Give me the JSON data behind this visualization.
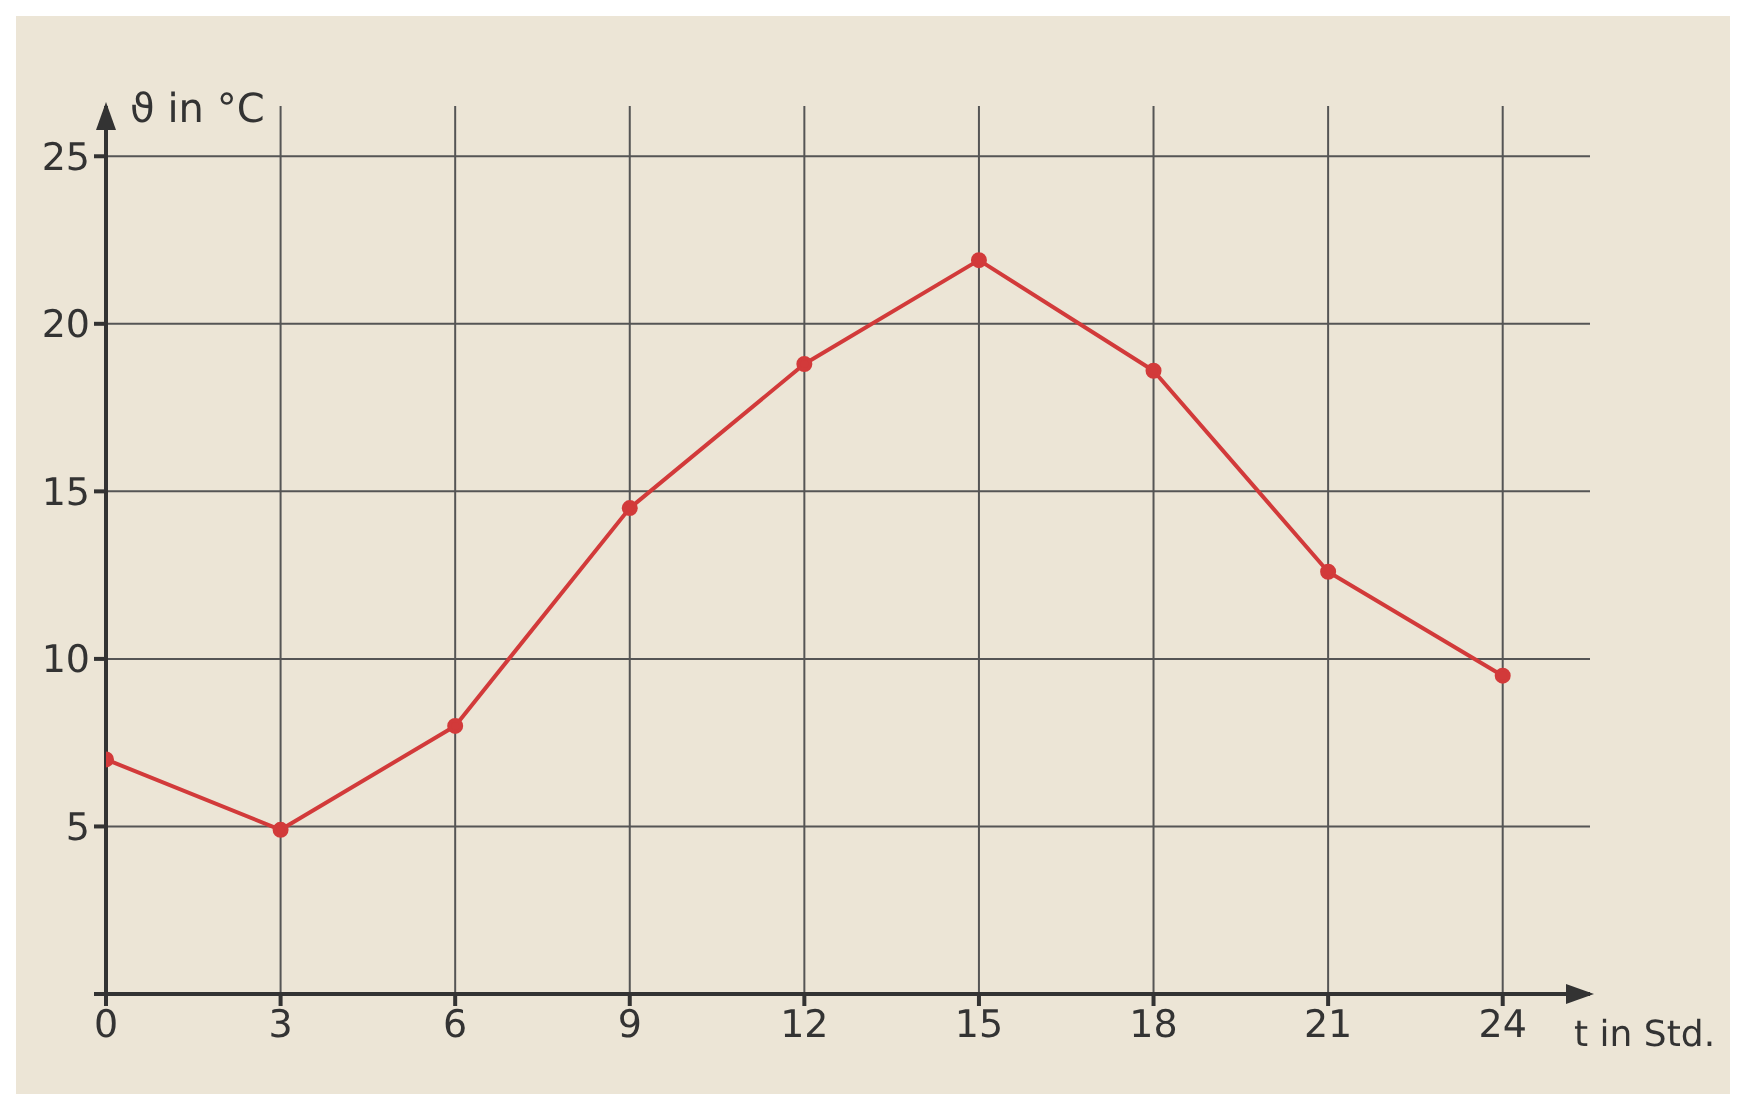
{
  "chart_data": {
    "type": "line",
    "xlabel": "t in Std.",
    "ylabel": "ϑ in °C",
    "x": [
      0,
      3,
      6,
      9,
      12,
      15,
      18,
      21,
      24
    ],
    "series": [
      {
        "color": "#d23a3a",
        "values": [
          7,
          4.9,
          8,
          14.5,
          18.8,
          21.9,
          18.6,
          12.6,
          9.5
        ]
      }
    ],
    "xlim": [
      0,
      25.5
    ],
    "ylim": [
      0,
      26.5
    ],
    "xticks": [
      0,
      3,
      6,
      9,
      12,
      15,
      18,
      21,
      24
    ],
    "yticks": [
      {
        "value": 0,
        "label": null
      },
      5,
      10,
      15,
      20,
      25
    ],
    "grid": true,
    "marker": "circle",
    "line_style": "solid"
  }
}
